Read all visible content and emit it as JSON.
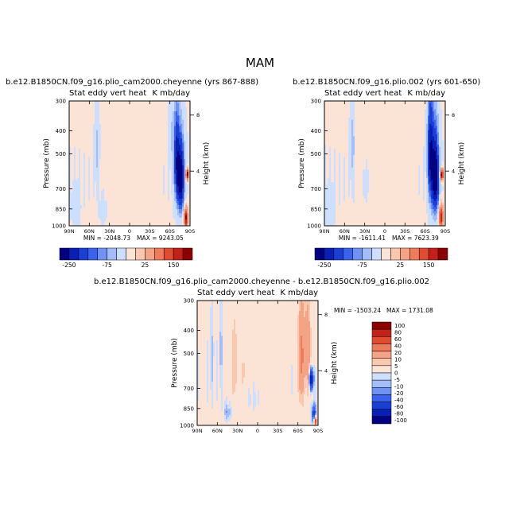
{
  "page": {
    "title": "MAM"
  },
  "colors": {
    "panels": [
      "#000080",
      "#0a1fb5",
      "#1a3fd6",
      "#3a62ec",
      "#6f93f4",
      "#a2bdfa",
      "#cddfff",
      "#fbe4d6",
      "#fac8ae",
      "#f4a384",
      "#ee7b5c",
      "#e14c30",
      "#c4201a",
      "#8b0000"
    ],
    "diff": [
      "#000080",
      "#0a1fb5",
      "#1a3fd6",
      "#3a62ec",
      "#6f93f4",
      "#a2bdfa",
      "#cddfff",
      "#fbe4d6",
      "#fac8ae",
      "#f4a384",
      "#ee7b5c",
      "#e14c30",
      "#c4201a",
      "#8b0000"
    ],
    "nodata": "#ffffff"
  },
  "chart_data": [
    {
      "type": "heatmap",
      "title": "b.e12.B1850CN.f09_g16.plio_cam2000.cheyenne (yrs 867-888)",
      "left_title": "Stat eddy vert heat",
      "right_title": "K mb/day",
      "xlabel": "",
      "ylabel": "Pressure (mb)",
      "ylabel_right": "Height (km)",
      "x_tick_labels": [
        "90N",
        "60N",
        "30N",
        "0",
        "30S",
        "60S",
        "90S"
      ],
      "x_tick_values": [
        90,
        60,
        30,
        0,
        -30,
        -60,
        -90
      ],
      "xlim": [
        90,
        -90
      ],
      "y_tick_labels": [
        "300",
        "400",
        "500",
        "700",
        "850",
        "1000"
      ],
      "y_tick_values": [
        300,
        400,
        500,
        700,
        850,
        1000
      ],
      "ylim": [
        300,
        1000
      ],
      "height_ticks": [
        "8",
        "4"
      ],
      "height_tick_values_km": [
        8,
        4
      ],
      "min_label": "MIN = -2048.73",
      "max_label": "MAX = 9243.05",
      "min": -2048.73,
      "max": 9243.05,
      "levels": [
        -250,
        -200,
        -150,
        -100,
        -75,
        -50,
        -25,
        0,
        25,
        50,
        100,
        150,
        200,
        250
      ],
      "colorbar_labels": [
        "-250",
        "-75",
        "25",
        "150"
      ],
      "colorbar_label_indices": [
        0,
        4,
        8,
        11
      ],
      "features": [
        {
          "lat": 48,
          "p": 480,
          "slat": 3,
          "sp": 170,
          "value": -35
        },
        {
          "lat": 80,
          "p": 820,
          "slat": 6,
          "sp": 140,
          "value": -20
        },
        {
          "lat": 24,
          "p": 620,
          "slat": 3,
          "sp": 90,
          "value": 22
        },
        {
          "lat": 40,
          "p": 860,
          "slat": 4,
          "sp": 90,
          "value": -20
        },
        {
          "lat": 10,
          "p": 780,
          "slat": 12,
          "sp": 110,
          "value": 10
        },
        {
          "lat": -70,
          "p": 520,
          "slat": 4,
          "sp": 210,
          "value": -160
        },
        {
          "lat": -76,
          "p": 630,
          "slat": 5,
          "sp": 200,
          "value": -260
        },
        {
          "lat": -86,
          "p": 610,
          "slat": 2,
          "sp": 30,
          "value": 320
        },
        {
          "lat": -84,
          "p": 930,
          "slat": 3,
          "sp": 90,
          "value": 260
        },
        {
          "lat": -62,
          "p": 420,
          "slat": 4,
          "sp": 120,
          "value": -30
        }
      ]
    },
    {
      "type": "heatmap",
      "title": "b.e12.B1850CN.f09_g16.plio.002 (yrs 601-650)",
      "left_title": "Stat eddy vert heat",
      "right_title": "K mb/day",
      "xlabel": "",
      "ylabel": "Pressure (mb)",
      "ylabel_right": "Height (km)",
      "x_tick_labels": [
        "90N",
        "60N",
        "30N",
        "0",
        "30S",
        "60S",
        "90S"
      ],
      "x_tick_values": [
        90,
        60,
        30,
        0,
        -30,
        -60,
        -90
      ],
      "xlim": [
        90,
        -90
      ],
      "y_tick_labels": [
        "300",
        "400",
        "500",
        "700",
        "850",
        "1000"
      ],
      "y_tick_values": [
        300,
        400,
        500,
        700,
        850,
        1000
      ],
      "ylim": [
        300,
        1000
      ],
      "height_ticks": [
        "8",
        "4"
      ],
      "height_tick_values_km": [
        8,
        4
      ],
      "min_label": "MIN = -1611.41",
      "max_label": "MAX = 7623.39",
      "min": -1611.41,
      "max": 7623.39,
      "levels": [
        -250,
        -200,
        -150,
        -100,
        -75,
        -50,
        -25,
        0,
        25,
        50,
        100,
        150,
        200,
        250
      ],
      "colorbar_labels": [
        "-250",
        "-75",
        "25",
        "150"
      ],
      "colorbar_label_indices": [
        0,
        4,
        8,
        11
      ],
      "features": [
        {
          "lat": 48,
          "p": 460,
          "slat": 3,
          "sp": 170,
          "value": -40
        },
        {
          "lat": 42,
          "p": 430,
          "slat": 2,
          "sp": 120,
          "value": 18
        },
        {
          "lat": 82,
          "p": 820,
          "slat": 6,
          "sp": 140,
          "value": -20
        },
        {
          "lat": 28,
          "p": 680,
          "slat": 3,
          "sp": 100,
          "value": -18
        },
        {
          "lat": 12,
          "p": 760,
          "slat": 12,
          "sp": 120,
          "value": 10
        },
        {
          "lat": -68,
          "p": 500,
          "slat": 4,
          "sp": 230,
          "value": -200
        },
        {
          "lat": -75,
          "p": 620,
          "slat": 5,
          "sp": 220,
          "value": -280
        },
        {
          "lat": -85,
          "p": 610,
          "slat": 2,
          "sp": 30,
          "value": 330
        },
        {
          "lat": -84,
          "p": 920,
          "slat": 3,
          "sp": 100,
          "value": 240
        }
      ]
    },
    {
      "type": "heatmap",
      "title": "b.e12.B1850CN.f09_g16.plio_cam2000.cheyenne - b.e12.B1850CN.f09_g16.plio.002",
      "left_title": "Stat eddy vert heat",
      "right_title": "K mb/day",
      "xlabel": "",
      "ylabel": "Pressure (mb)",
      "ylabel_right": "Height (km)",
      "x_tick_labels": [
        "90N",
        "60N",
        "30N",
        "0",
        "30S",
        "60S",
        "90S"
      ],
      "x_tick_values": [
        90,
        60,
        30,
        0,
        -30,
        -60,
        -90
      ],
      "xlim": [
        90,
        -90
      ],
      "y_tick_labels": [
        "300",
        "400",
        "500",
        "700",
        "850",
        "1000"
      ],
      "y_tick_values": [
        300,
        400,
        500,
        700,
        850,
        1000
      ],
      "ylim": [
        300,
        1000
      ],
      "height_ticks": [
        "8",
        "4"
      ],
      "height_tick_values_km": [
        8,
        4
      ],
      "min_label": "MIN = -1503.24",
      "max_label": "MAX = 1731.08",
      "min": -1503.24,
      "max": 1731.08,
      "levels": [
        -100,
        -80,
        -60,
        -40,
        -20,
        -10,
        -5,
        0,
        5,
        10,
        20,
        40,
        60,
        80,
        100
      ],
      "colorbar_labels": [
        "100",
        "80",
        "60",
        "40",
        "20",
        "10",
        "5",
        "0",
        "-5",
        "-10",
        "-20",
        "-40",
        "-60",
        "-80",
        "-100"
      ],
      "features": [
        {
          "lat": 34,
          "p": 550,
          "slat": 4,
          "sp": 260,
          "value": 14
        },
        {
          "lat": 20,
          "p": 600,
          "slat": 3,
          "sp": 180,
          "value": 9
        },
        {
          "lat": 55,
          "p": 480,
          "slat": 3,
          "sp": 160,
          "value": -9
        },
        {
          "lat": 68,
          "p": 520,
          "slat": 4,
          "sp": 200,
          "value": -7
        },
        {
          "lat": 82,
          "p": 700,
          "slat": 4,
          "sp": 200,
          "value": 9
        },
        {
          "lat": 45,
          "p": 880,
          "slat": 5,
          "sp": 70,
          "value": -12
        },
        {
          "lat": 5,
          "p": 780,
          "slat": 10,
          "sp": 130,
          "value": -6
        },
        {
          "lat": -65,
          "p": 520,
          "slat": 4,
          "sp": 240,
          "value": 45
        },
        {
          "lat": -74,
          "p": 480,
          "slat": 5,
          "sp": 200,
          "value": 35
        },
        {
          "lat": -80,
          "p": 640,
          "slat": 3,
          "sp": 60,
          "value": -80
        },
        {
          "lat": -84,
          "p": 900,
          "slat": 3,
          "sp": 80,
          "value": -50
        },
        {
          "lat": -86,
          "p": 960,
          "slat": 2,
          "sp": 40,
          "value": 90
        }
      ]
    }
  ]
}
